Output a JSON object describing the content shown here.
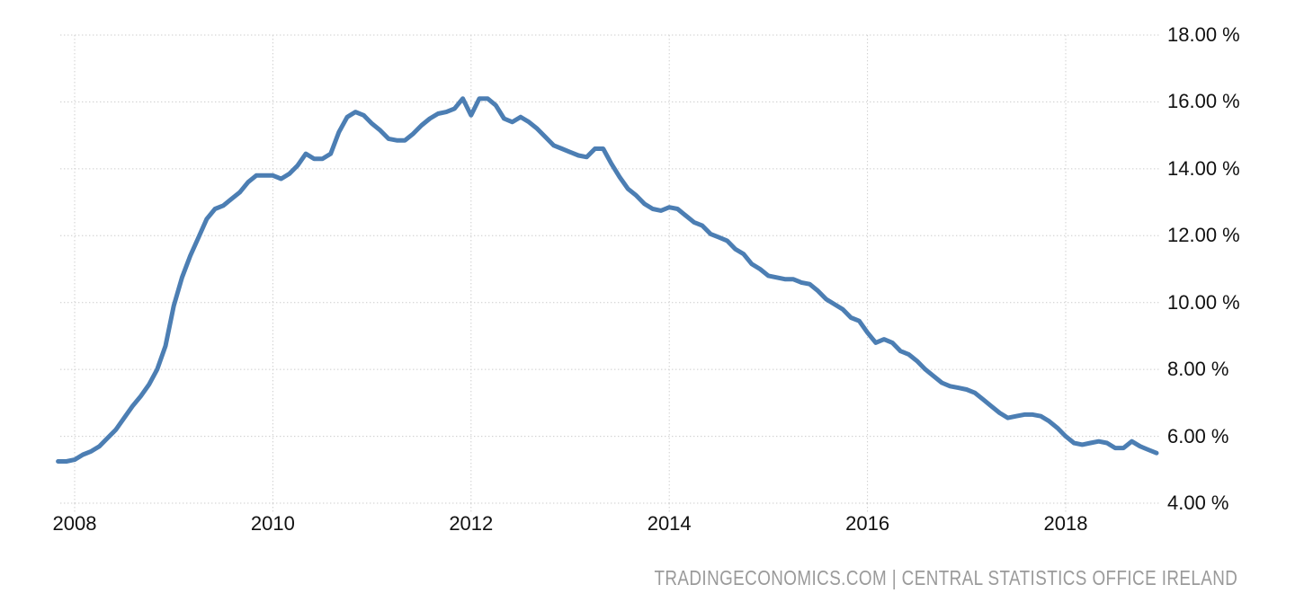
{
  "chart_data": {
    "type": "line",
    "title": "",
    "x_start": "2007-11",
    "x_end": "2018-12",
    "x_interval": "monthly",
    "values": [
      5.25,
      5.25,
      5.3,
      5.45,
      5.55,
      5.7,
      5.95,
      6.2,
      6.55,
      6.9,
      7.2,
      7.55,
      8.0,
      8.7,
      9.9,
      10.75,
      11.4,
      11.95,
      12.5,
      12.8,
      12.9,
      13.1,
      13.3,
      13.6,
      13.8,
      13.8,
      13.8,
      13.7,
      13.85,
      14.1,
      14.45,
      14.3,
      14.3,
      14.45,
      15.1,
      15.55,
      15.7,
      15.6,
      15.35,
      15.15,
      14.9,
      14.85,
      14.85,
      15.05,
      15.3,
      15.5,
      15.65,
      15.7,
      15.8,
      16.1,
      15.6,
      16.1,
      16.1,
      15.9,
      15.5,
      15.4,
      15.55,
      15.4,
      15.2,
      14.95,
      14.7,
      14.6,
      14.5,
      14.4,
      14.35,
      14.6,
      14.6,
      14.15,
      13.75,
      13.4,
      13.2,
      12.95,
      12.8,
      12.75,
      12.85,
      12.8,
      12.6,
      12.4,
      12.3,
      12.05,
      11.95,
      11.85,
      11.6,
      11.45,
      11.15,
      11.0,
      10.8,
      10.75,
      10.7,
      10.7,
      10.6,
      10.55,
      10.35,
      10.1,
      9.95,
      9.8,
      9.55,
      9.45,
      9.1,
      8.8,
      8.9,
      8.8,
      8.55,
      8.45,
      8.25,
      8.0,
      7.8,
      7.6,
      7.5,
      7.45,
      7.4,
      7.3,
      7.1,
      6.9,
      6.7,
      6.55,
      6.6,
      6.65,
      6.65,
      6.6,
      6.45,
      6.25,
      6.0,
      5.8,
      5.75,
      5.8,
      5.85,
      5.8,
      5.65,
      5.65,
      5.85,
      5.7,
      5.6,
      5.5
    ],
    "x_tick_years": [
      2008,
      2010,
      2012,
      2014,
      2016,
      2018
    ],
    "x_tick_labels": [
      "2008",
      "2010",
      "2012",
      "2014",
      "2016",
      "2018"
    ],
    "y_tick_values": [
      18,
      16,
      14,
      12,
      10,
      8,
      6,
      4
    ],
    "y_tick_labels": [
      "18.00 %",
      "16.00 %",
      "14.00 %",
      "12.00 %",
      "10.00 %",
      "8.00 %",
      "6.00 %",
      "4.00 %"
    ],
    "ylim": [
      4,
      18
    ],
    "grid": "dotted",
    "legend": "none",
    "colors": {
      "line": "#4c7eb3",
      "grid": "#cccccc",
      "tick_text": "#111111"
    }
  },
  "attribution": {
    "text": "TRADINGECONOMICS.COM | CENTRAL STATISTICS OFFICE IRELAND",
    "color": "#9a9a9a"
  }
}
